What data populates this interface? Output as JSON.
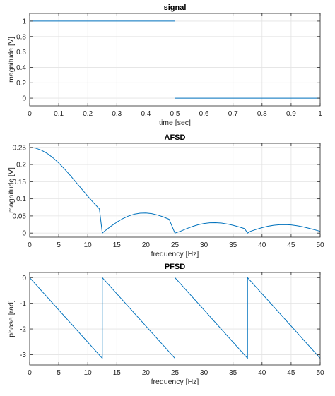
{
  "colors": {
    "line": "#0072BD",
    "grid": "#e3e3e3",
    "axis": "#262626",
    "background": "#ffffff"
  },
  "chart_data": [
    {
      "type": "line",
      "title": "signal",
      "xlabel": "time [sec]",
      "ylabel": "magnitude [V]",
      "xlim": [
        0,
        1
      ],
      "ylim": [
        -0.1,
        1.1
      ],
      "grid": true,
      "xticks": [
        0,
        0.1,
        0.2,
        0.3,
        0.4,
        0.5,
        0.6,
        0.7,
        0.8,
        0.9,
        1
      ],
      "xtick_labels": [
        "0",
        "0.1",
        "0.2",
        "0.3",
        "0.4",
        "0.5",
        "0.6",
        "0.7",
        "0.8",
        "0.9",
        "1"
      ],
      "yticks": [
        0,
        0.2,
        0.4,
        0.6,
        0.8,
        1
      ],
      "ytick_labels": [
        "0",
        "0.2",
        "0.4",
        "0.6",
        "0.8",
        "1"
      ],
      "series": [
        {
          "x": [
            0,
            0.5,
            0.5,
            1
          ],
          "y": [
            1,
            1,
            0,
            0
          ]
        }
      ]
    },
    {
      "type": "line",
      "title": "AFSD",
      "xlabel": "frequency [Hz]",
      "ylabel": "magnitude [V]",
      "xlim": [
        0,
        50
      ],
      "ylim": [
        -0.012,
        0.262
      ],
      "grid": true,
      "xticks": [
        0,
        5,
        10,
        15,
        20,
        25,
        30,
        35,
        40,
        45,
        50
      ],
      "xtick_labels": [
        "0",
        "5",
        "10",
        "15",
        "20",
        "25",
        "30",
        "35",
        "40",
        "45",
        "50"
      ],
      "yticks": [
        0,
        0.05,
        0.1,
        0.15,
        0.2,
        0.25
      ],
      "ytick_labels": [
        "0",
        "0.05",
        "0.1",
        "0.15",
        "0.2",
        "0.25"
      ],
      "series": [
        {
          "x": [
            0,
            1,
            2,
            3,
            4,
            5,
            6,
            7,
            8,
            9,
            10,
            11,
            12,
            12.5,
            13,
            14,
            15,
            16,
            17,
            18,
            19,
            20,
            21,
            22,
            23,
            24,
            25,
            26,
            27,
            28,
            29,
            30,
            31,
            32,
            33,
            34,
            35,
            36,
            37,
            37.5,
            38,
            39,
            40,
            41,
            42,
            43,
            44,
            45,
            46,
            47,
            48,
            49,
            50
          ],
          "y": [
            0.25,
            0.248,
            0.2421,
            0.2326,
            0.2199,
            0.2045,
            0.1869,
            0.1678,
            0.1478,
            0.1276,
            0.1076,
            0.0884,
            0.0706,
            0.0,
            0.0071,
            0.0201,
            0.0318,
            0.0419,
            0.0497,
            0.0551,
            0.058,
            0.0585,
            0.0567,
            0.0528,
            0.0472,
            0.0403,
            0.0,
            0.0056,
            0.0128,
            0.0191,
            0.0243,
            0.0279,
            0.0299,
            0.0303,
            0.0291,
            0.0265,
            0.0228,
            0.0181,
            0.0129,
            0.0,
            0.0051,
            0.0108,
            0.0158,
            0.0199,
            0.0228,
            0.0244,
            0.0247,
            0.0237,
            0.0215,
            0.0183,
            0.0143,
            0.0099,
            0.0051
          ]
        }
      ]
    },
    {
      "type": "line",
      "title": "PFSD",
      "xlabel": "frequency [Hz]",
      "ylabel": "phase [rad]",
      "xlim": [
        0,
        50
      ],
      "ylim": [
        -3.4,
        0.2
      ],
      "grid": true,
      "xticks": [
        0,
        5,
        10,
        15,
        20,
        25,
        30,
        35,
        40,
        45,
        50
      ],
      "xtick_labels": [
        "0",
        "5",
        "10",
        "15",
        "20",
        "25",
        "30",
        "35",
        "40",
        "45",
        "50"
      ],
      "yticks": [
        -3,
        -2,
        -1,
        0
      ],
      "ytick_labels": [
        "-3",
        "-2",
        "-1",
        "0"
      ],
      "series": [
        {
          "x": [
            0,
            12.5,
            12.5,
            25,
            25,
            37.5,
            37.5,
            50
          ],
          "y": [
            0,
            -3.1416,
            0,
            -3.1416,
            0,
            -3.1416,
            0,
            -3.1416
          ]
        }
      ]
    }
  ]
}
